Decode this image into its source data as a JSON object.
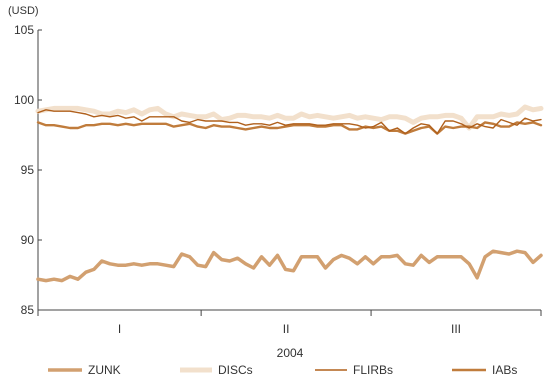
{
  "chart_data": {
    "type": "line",
    "y_unit": "(USD)",
    "xlabel": "2004",
    "ylim": [
      85,
      105
    ],
    "yticks": [
      85,
      90,
      95,
      100,
      105
    ],
    "x_period_labels": [
      "I",
      "II",
      "III"
    ],
    "x_range": [
      0,
      74
    ],
    "x_period_bounds": [
      0,
      24,
      49,
      74
    ],
    "grid": false,
    "legend_placement": "bottom",
    "series": [
      {
        "name": "ZUNK",
        "color": "#d2a070",
        "values": [
          87.2,
          87.1,
          87.2,
          87.1,
          87.4,
          87.2,
          87.7,
          87.9,
          88.5,
          88.3,
          88.2,
          88.2,
          88.3,
          88.2,
          88.3,
          88.3,
          88.2,
          88.1,
          89.0,
          88.8,
          88.2,
          88.1,
          89.1,
          88.6,
          88.5,
          88.7,
          88.3,
          88.0,
          88.8,
          88.2,
          88.9,
          87.9,
          87.8,
          88.8,
          88.8,
          88.8,
          88.0,
          88.6,
          88.9,
          88.7,
          88.3,
          88.8,
          88.3,
          88.8,
          88.8,
          88.9,
          88.3,
          88.2,
          88.9,
          88.4,
          88.8,
          88.8,
          88.8,
          88.8,
          88.3,
          87.3,
          88.8,
          89.2,
          89.1,
          89.0,
          89.2,
          89.1,
          88.4,
          88.9
        ]
      },
      {
        "name": "DISCs",
        "color": "#f2e0cc",
        "values": [
          99.2,
          99.3,
          99.4,
          99.4,
          99.4,
          99.4,
          99.3,
          99.2,
          99.0,
          99.0,
          99.2,
          99.1,
          99.3,
          99.0,
          99.3,
          99.4,
          99.0,
          98.8,
          99.0,
          98.9,
          98.8,
          98.8,
          99.0,
          98.6,
          98.7,
          98.9,
          98.9,
          98.8,
          98.8,
          98.7,
          98.9,
          98.7,
          98.7,
          99.0,
          98.8,
          98.9,
          98.8,
          98.7,
          98.8,
          98.9,
          98.7,
          98.8,
          98.7,
          98.6,
          98.8,
          98.8,
          98.7,
          98.4,
          98.7,
          98.8,
          98.8,
          98.9,
          98.9,
          98.7,
          98.0,
          98.8,
          98.8,
          98.8,
          99.0,
          98.9,
          99.0,
          99.5,
          99.3,
          99.4
        ]
      },
      {
        "name": "FLIRBs",
        "color": "#b0601c",
        "values": [
          99.1,
          99.3,
          99.2,
          99.2,
          99.2,
          99.1,
          99.0,
          98.8,
          98.9,
          98.8,
          98.9,
          98.7,
          98.8,
          98.5,
          98.8,
          98.8,
          98.8,
          98.8,
          98.5,
          98.4,
          98.6,
          98.5,
          98.5,
          98.5,
          98.4,
          98.4,
          98.2,
          98.3,
          98.3,
          98.2,
          98.4,
          98.2,
          98.3,
          98.3,
          98.3,
          98.2,
          98.2,
          98.3,
          98.3,
          98.3,
          98.2,
          98.0,
          98.1,
          98.4,
          97.8,
          98.0,
          97.6,
          98.0,
          98.3,
          98.2,
          97.6,
          98.5,
          98.5,
          98.3,
          98.0,
          98.3,
          98.1,
          98.0,
          98.6,
          98.4,
          98.2,
          98.7,
          98.5,
          98.6
        ]
      },
      {
        "name": "IABs",
        "color": "#c07c3c",
        "values": [
          98.4,
          98.2,
          98.2,
          98.1,
          98.0,
          98.0,
          98.2,
          98.2,
          98.3,
          98.3,
          98.2,
          98.3,
          98.2,
          98.3,
          98.3,
          98.3,
          98.3,
          98.1,
          98.2,
          98.3,
          98.1,
          98.0,
          98.2,
          98.1,
          98.1,
          98.0,
          97.9,
          98.0,
          98.1,
          98.0,
          98.0,
          98.1,
          98.2,
          98.2,
          98.2,
          98.1,
          98.1,
          98.2,
          98.2,
          97.9,
          97.9,
          98.1,
          98.0,
          98.1,
          97.8,
          97.8,
          97.6,
          97.8,
          98.0,
          98.1,
          97.6,
          98.1,
          98.0,
          98.1,
          98.1,
          98.0,
          98.4,
          98.3,
          98.1,
          98.1,
          98.4,
          98.3,
          98.4,
          98.2
        ]
      }
    ]
  }
}
